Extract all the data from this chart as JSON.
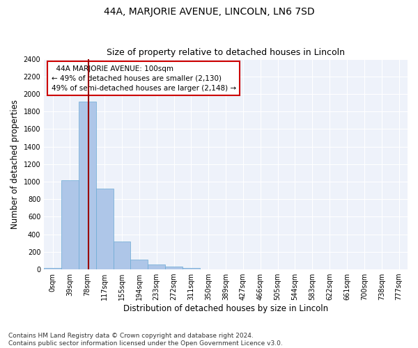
{
  "title": "44A, MARJORIE AVENUE, LINCOLN, LN6 7SD",
  "subtitle": "Size of property relative to detached houses in Lincoln",
  "xlabel": "Distribution of detached houses by size in Lincoln",
  "ylabel": "Number of detached properties",
  "bar_color": "#aec6e8",
  "bar_edge_color": "#6aaad4",
  "background_color": "#eef2fa",
  "grid_color": "#ffffff",
  "categories": [
    "0sqm",
    "39sqm",
    "78sqm",
    "117sqm",
    "155sqm",
    "194sqm",
    "233sqm",
    "272sqm",
    "311sqm",
    "350sqm",
    "389sqm",
    "427sqm",
    "466sqm",
    "505sqm",
    "544sqm",
    "583sqm",
    "622sqm",
    "661sqm",
    "700sqm",
    "738sqm",
    "777sqm"
  ],
  "values": [
    20,
    1020,
    1910,
    920,
    315,
    110,
    55,
    35,
    20,
    0,
    0,
    0,
    0,
    0,
    0,
    0,
    0,
    0,
    0,
    0,
    0
  ],
  "vline_x": 2.56,
  "vline_color": "#990000",
  "annotation_text": "  44A MARJORIE AVENUE: 100sqm\n← 49% of detached houses are smaller (2,130)\n49% of semi-detached houses are larger (2,148) →",
  "annotation_box_color": "#ffffff",
  "annotation_box_edge": "#cc0000",
  "ylim": [
    0,
    2400
  ],
  "yticks": [
    0,
    200,
    400,
    600,
    800,
    1000,
    1200,
    1400,
    1600,
    1800,
    2000,
    2200,
    2400
  ],
  "footer": "Contains HM Land Registry data © Crown copyright and database right 2024.\nContains public sector information licensed under the Open Government Licence v3.0.",
  "title_fontsize": 10,
  "subtitle_fontsize": 9,
  "xlabel_fontsize": 8.5,
  "ylabel_fontsize": 8.5,
  "tick_fontsize": 7,
  "annotation_fontsize": 7.5,
  "footer_fontsize": 6.5
}
